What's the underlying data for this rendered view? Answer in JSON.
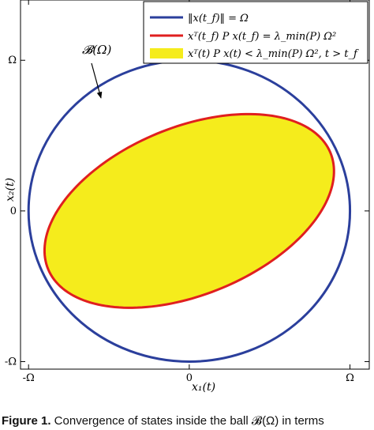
{
  "chart_data": {
    "type": "area",
    "title": "",
    "xlabel": "x₁(t)",
    "ylabel": "x₂(t)",
    "xlim": [
      -1.05,
      1.12
    ],
    "ylim": [
      -1.05,
      1.4
    ],
    "x_ticks": [
      {
        "value": -1,
        "label": "-Ω"
      },
      {
        "value": 0,
        "label": "0"
      },
      {
        "value": 1,
        "label": "Ω"
      }
    ],
    "y_ticks": [
      {
        "value": -1,
        "label": "-Ω"
      },
      {
        "value": 0,
        "label": "0"
      },
      {
        "value": 1,
        "label": "Ω"
      }
    ],
    "grid": false,
    "legend_position": "top-right",
    "series": [
      {
        "name": "‖x(t_f)‖ = Ω",
        "shape": "circle",
        "center": [
          0,
          0
        ],
        "radius": 1,
        "color": "#2b3f9c"
      },
      {
        "name": "xᵀ(t_f) P x(t_f) = λ_min(P) Ω²",
        "shape": "ellipse",
        "center": [
          0,
          0
        ],
        "semi_major": 0.96,
        "semi_minor": 0.55,
        "rotation_deg": 25,
        "color": "#e01f1f"
      },
      {
        "name": "xᵀ(t) P x(t) < λ_min(P) Ω²,   t > t_f",
        "shape": "ellipse-region",
        "color": "#f5ec1c"
      }
    ],
    "annotations": [
      {
        "text": "𝓑(Ω)",
        "points_to": [
          -0.7,
          0.72
        ],
        "label_at": [
          -0.72,
          1.1
        ]
      }
    ]
  },
  "caption": {
    "label": "Figure 1.",
    "text": " Convergence of states inside the ball 𝓑(Ω) in terms"
  }
}
